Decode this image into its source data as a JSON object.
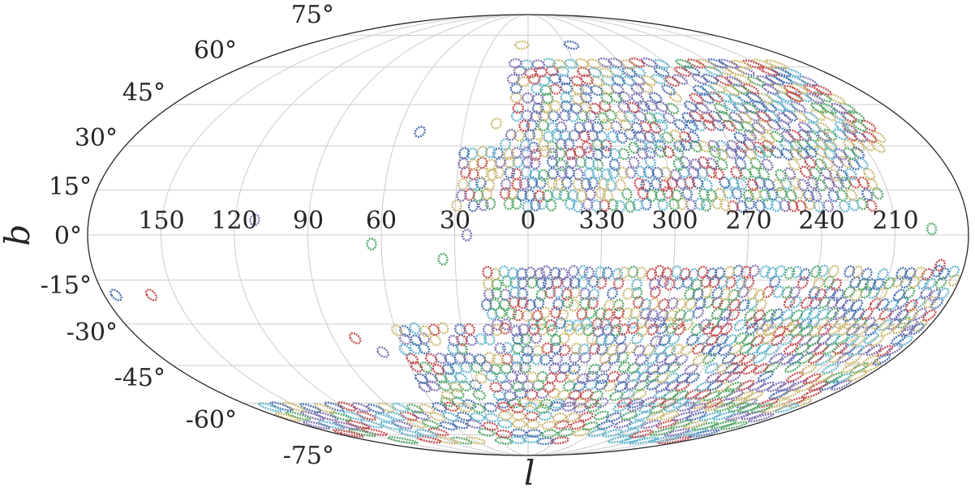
{
  "chart_data": {
    "type": "scatter",
    "projection": "mollweide",
    "title": "",
    "xlabel": "l",
    "ylabel": "b",
    "grid": true,
    "legend": "none",
    "lat_tick_labels": [
      "75°",
      "60°",
      "45°",
      "30°",
      "15°",
      "0°",
      "-15°",
      "-30°",
      "-45°",
      "-60°",
      "-75°"
    ],
    "lat_tick_values": [
      75,
      60,
      45,
      30,
      15,
      0,
      -15,
      -30,
      -45,
      -60,
      -75
    ],
    "lon_tick_labels": [
      "150",
      "120",
      "90",
      "60",
      "30",
      "0",
      "330",
      "300",
      "270",
      "240",
      "210"
    ],
    "lon_tick_values": [
      150,
      120,
      90,
      60,
      30,
      0,
      330,
      300,
      270,
      240,
      210
    ],
    "marker": "small circular footprints drawn as dotted rings",
    "series_colors": [
      "#4c72b0",
      "#55a868",
      "#c44e52",
      "#8172b2",
      "#ccb974",
      "#64b5cd"
    ],
    "footprint_radius_deg": 1.8,
    "footprint_regions": [
      {
        "l_range": [
          -160,
          10
        ],
        "b_range": [
          30,
          62
        ],
        "step_deg": 3.5
      },
      {
        "l_range": [
          -145,
          30
        ],
        "b_range": [
          10,
          30
        ],
        "step_deg": 3.5
      },
      {
        "l_range": [
          -180,
          20
        ],
        "b_range": [
          -30,
          -10
        ],
        "step_deg": 3.5
      },
      {
        "l_range": [
          -180,
          60
        ],
        "b_range": [
          -60,
          -30
        ],
        "step_deg": 3.5
      },
      {
        "l_range": [
          -180,
          180
        ],
        "b_range": [
          -78,
          -60
        ],
        "step_deg": 4.0
      }
    ],
    "isolated_footprints": [
      {
        "l": 112,
        "b": 5
      },
      {
        "l": 64,
        "b": -3
      },
      {
        "l": 50,
        "b": 35
      },
      {
        "l": 5,
        "b": 70
      },
      {
        "l": -35,
        "b": 70
      },
      {
        "l": -140,
        "b": 48
      },
      {
        "l": -150,
        "b": 36
      },
      {
        "l": -135,
        "b": 30
      },
      {
        "l": -165,
        "b": 2
      },
      {
        "l": -170,
        "b": -10
      },
      {
        "l": -178,
        "b": -15
      },
      {
        "l": 160,
        "b": -20
      },
      {
        "l": 175,
        "b": -20
      },
      {
        "l": 80,
        "b": -35
      },
      {
        "l": 70,
        "b": -40
      },
      {
        "l": 25,
        "b": 0
      },
      {
        "l": 35,
        "b": -8
      },
      {
        "l": 15,
        "b": 38
      }
    ]
  }
}
